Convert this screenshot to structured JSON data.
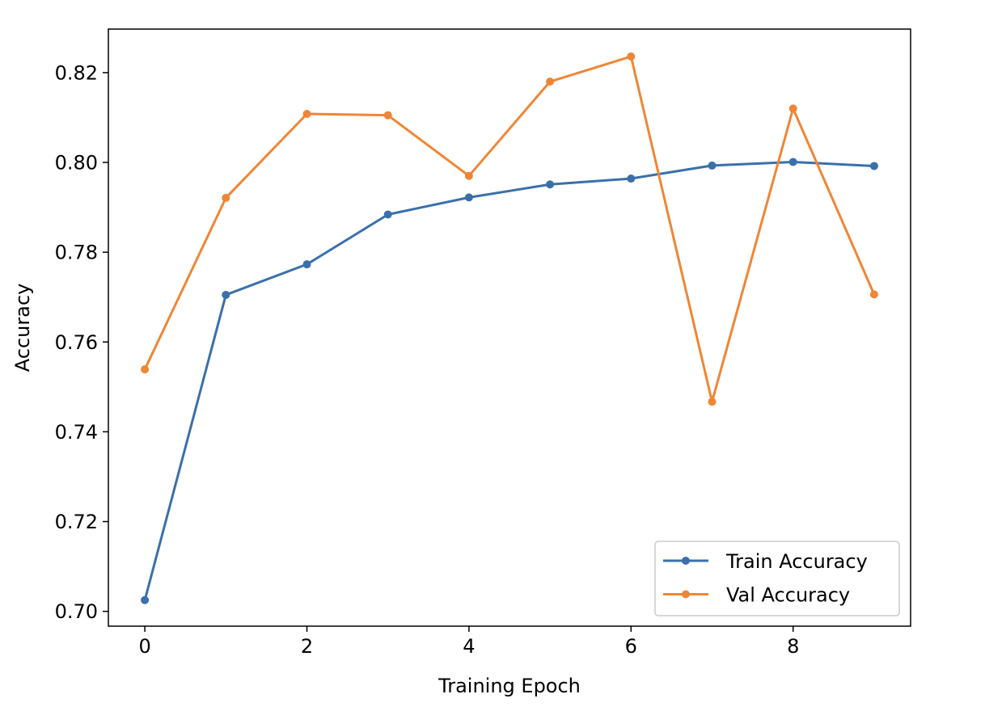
{
  "chart_data": {
    "type": "line",
    "xlabel": "Training Epoch",
    "ylabel": "Accuracy",
    "xlim": [
      -0.45,
      9.45
    ],
    "ylim": [
      0.6967,
      0.8297
    ],
    "x_ticks": [
      0,
      2,
      4,
      6,
      8
    ],
    "y_ticks": [
      0.7,
      0.72,
      0.74,
      0.76,
      0.78,
      0.8,
      0.82
    ],
    "y_tick_labels": [
      "0.70",
      "0.72",
      "0.74",
      "0.76",
      "0.78",
      "0.80",
      "0.82"
    ],
    "grid": false,
    "legend_position": "bottom-right",
    "x": [
      0,
      1,
      2,
      3,
      4,
      5,
      6,
      7,
      8,
      9
    ],
    "series": [
      {
        "name": "Train Accuracy",
        "color": "#3a70aa",
        "values": [
          0.7025,
          0.7705,
          0.7773,
          0.7884,
          0.7922,
          0.7951,
          0.7964,
          0.7993,
          0.8001,
          0.7992
        ]
      },
      {
        "name": "Val Accuracy",
        "color": "#ef8636",
        "values": [
          0.7539,
          0.7921,
          0.8108,
          0.8105,
          0.797,
          0.818,
          0.8236,
          0.7467,
          0.812,
          0.7706
        ]
      }
    ]
  }
}
